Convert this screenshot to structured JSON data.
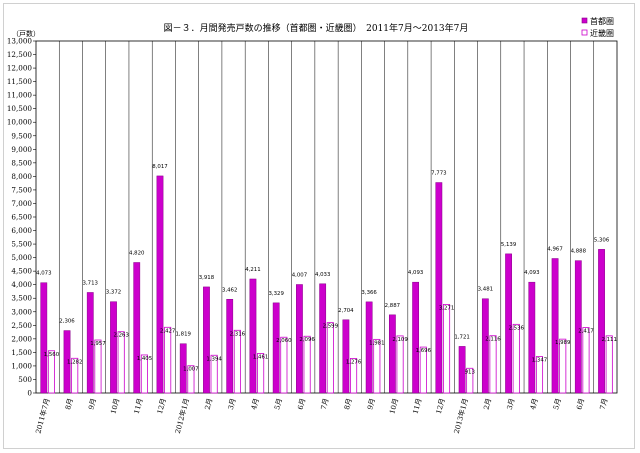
{
  "chart_data": {
    "type": "bar",
    "title": "図－３．月間発売戸数の推移（首都圏・近畿圏）　2011年7月～2013年7月",
    "ylabel": "（戸数）",
    "xlabel": "",
    "ylim": [
      0,
      13000
    ],
    "ytick_step": 500,
    "grid": "vertical",
    "legend": "top-right",
    "categories": [
      "2011年7月",
      "8月",
      "9月",
      "10月",
      "11月",
      "12月",
      "2012年1月",
      "2月",
      "3月",
      "4月",
      "5月",
      "6月",
      "7月",
      "8月",
      "9月",
      "10月",
      "11月",
      "12月",
      "2013年1月",
      "2月",
      "3月",
      "4月",
      "5月",
      "6月",
      "7月"
    ],
    "series": [
      {
        "name": "首都圏",
        "color": "#cc00cc",
        "fill": "solid",
        "values": [
          4073,
          2306,
          3713,
          3372,
          4820,
          8017,
          1819,
          3918,
          3462,
          4211,
          3329,
          4007,
          4033,
          2704,
          3366,
          2887,
          4093,
          7773,
          1721,
          3481,
          5139,
          4093,
          4967,
          4888,
          5306
        ],
        "labels": [
          "4,073",
          "2,306",
          "3,713",
          "3,372",
          "4,820",
          "8,017",
          "1,819",
          "3,918",
          "3,462",
          "4,211",
          "3,329",
          "4,007",
          "4,033",
          "2,704",
          "3,366",
          "2,887",
          "4,093",
          "7,773",
          "1,721",
          "3,481",
          "5,139",
          "4,093",
          "4,967",
          "4,888",
          "5,306"
        ]
      },
      {
        "name": "近畿圏",
        "color": "#cc00cc",
        "fill": "outline",
        "values": [
          1560,
          1282,
          1957,
          2263,
          1405,
          2427,
          1007,
          1394,
          2316,
          1461,
          2060,
          2096,
          2599,
          1276,
          1981,
          2109,
          1696,
          3271,
          913,
          2116,
          2536,
          1347,
          1989,
          2417,
          2111
        ],
        "labels": [
          "1,560",
          "1,282",
          "1,957",
          "2,263",
          "1,405",
          "2,427",
          "1,007",
          "1,394",
          "2,316",
          "1,461",
          "2,060",
          "2,096",
          "2,599",
          "1,276",
          "1,981",
          "2,109",
          "1,696",
          "3,271",
          "913",
          "2,116",
          "2,536",
          "1,347",
          "1,989",
          "2,417",
          "2,111"
        ]
      }
    ]
  }
}
